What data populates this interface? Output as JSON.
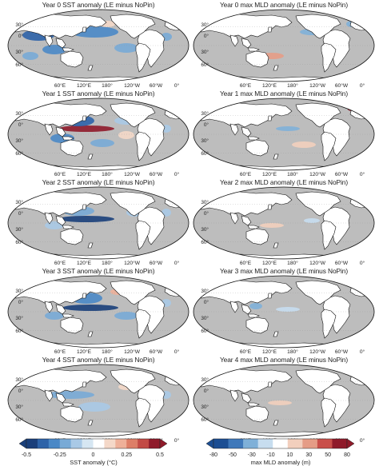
{
  "left_titles": [
    "Year 0 SST anomaly (LE minus NoPin)",
    "Year 1 SST anomaly (LE minus NoPin)",
    "Year 2 SST anomaly (LE minus NoPin)",
    "Year 3 SST anomaly (LE minus NoPin)",
    "Year 4 SST anomaly (LE minus NoPin)"
  ],
  "right_titles": [
    "Year 0 max MLD anomaly (LE minus NoPin)",
    "Year 1 max MLD anomaly (LE minus NoPin)",
    "Year 2 max MLD anomaly (LE minus NoPin)",
    "Year 3 max MLD anomaly (LE minus NoPin)",
    "Year 4 max MLD anomaly (LE minus NoPin)"
  ],
  "lon_labels": [
    "60°E",
    "120°E",
    "180°",
    "120°W",
    "60°W",
    "0°"
  ],
  "lat_labels": [
    "30°",
    "0°",
    "30°",
    "60°"
  ],
  "sst_colorbar": {
    "ticks": [
      "-0.5",
      "-0.25",
      "0",
      "0.25",
      "0.5"
    ],
    "label": "SST anomaly (°C)",
    "colors": [
      "#1a3f7a",
      "#2e63a8",
      "#4a88c6",
      "#78aad6",
      "#a9c9e6",
      "#d6e6f2",
      "#ffffff",
      "#f4d8c8",
      "#eeb099",
      "#dd7e67",
      "#c24a45",
      "#8f1a2a"
    ]
  },
  "mld_colorbar": {
    "ticks": [
      "-80",
      "-50",
      "-30",
      "-10",
      "10",
      "30",
      "50",
      "80"
    ],
    "label": "max MLD anomaly (m)",
    "colors": [
      "#1c4e93",
      "#3f78ba",
      "#7fb0d8",
      "#c7ddef",
      "#ffffff",
      "#f2cfbd",
      "#e59c86",
      "#c94f4a",
      "#8f1a2a"
    ]
  },
  "colors": {
    "land": "#ffffff",
    "ocean_neutral": "#bdbdbd",
    "coast": "#111111"
  }
}
